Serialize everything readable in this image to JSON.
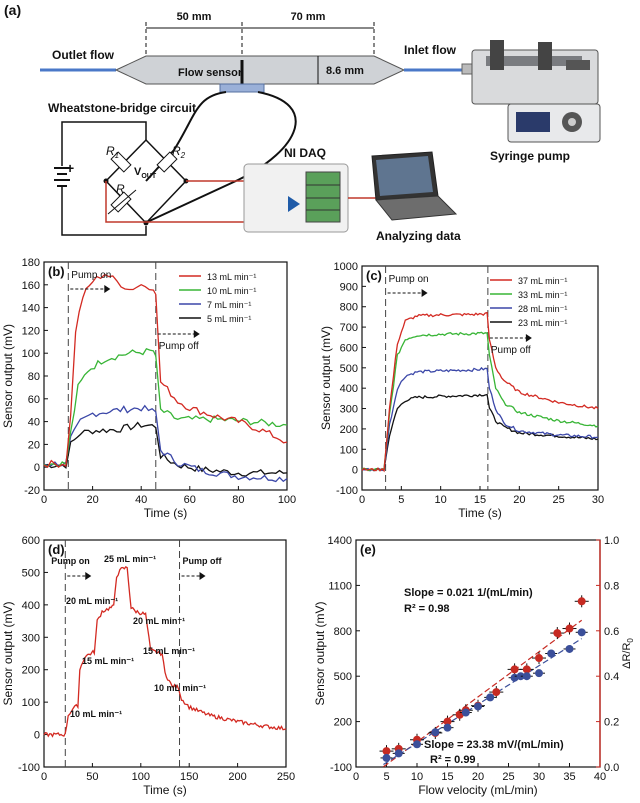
{
  "panel_a": {
    "label": "(a)",
    "dim_left": "50 mm",
    "dim_right": "70 mm",
    "dim_height": "8.6 mm",
    "outlet": "Outlet flow",
    "inlet": "Inlet flow",
    "flow_sensor": "Flow sensor",
    "bridge_title": "Wheatstone-bridge circuit",
    "r1": "R",
    "r1_sub": "1",
    "r2": "R",
    "r2_sub": "2",
    "vout": "V",
    "vout_sub": "OUT",
    "r_var": "R",
    "plus": "+",
    "daq": "NI DAQ",
    "syringe": "Syringe pump",
    "analyzing": "Analyzing data"
  },
  "chart_data": [
    {
      "id": "b",
      "type": "line",
      "panel_label": "(b)",
      "xlabel": "Time (s)",
      "ylabel": "Sensor output (mV)",
      "xlim": [
        0,
        100
      ],
      "ylim": [
        -20,
        180
      ],
      "xticks": [
        0,
        20,
        40,
        60,
        80,
        100
      ],
      "yticks": [
        -20,
        0,
        20,
        40,
        60,
        80,
        100,
        120,
        140,
        160,
        180
      ],
      "markers": [
        10,
        46
      ],
      "annotations": [
        "Pump on",
        "Pump off"
      ],
      "series": [
        {
          "name": "13 mL min⁻¹",
          "color": "#d32a22",
          "points": [
            [
              0,
              3
            ],
            [
              9,
              3
            ],
            [
              11,
              45
            ],
            [
              13,
              120
            ],
            [
              16,
              150
            ],
            [
              20,
              163
            ],
            [
              25,
              170
            ],
            [
              30,
              163
            ],
            [
              35,
              156
            ],
            [
              40,
              160
            ],
            [
              45,
              158
            ],
            [
              46,
              150
            ],
            [
              48,
              75
            ],
            [
              55,
              58
            ],
            [
              60,
              52
            ],
            [
              70,
              45
            ],
            [
              80,
              40
            ],
            [
              90,
              32
            ],
            [
              100,
              22
            ]
          ]
        },
        {
          "name": "10 mL min⁻¹",
          "color": "#38b536",
          "points": [
            [
              0,
              3
            ],
            [
              9,
              3
            ],
            [
              11,
              30
            ],
            [
              14,
              70
            ],
            [
              18,
              85
            ],
            [
              25,
              95
            ],
            [
              35,
              100
            ],
            [
              45,
              102
            ],
            [
              46,
              95
            ],
            [
              48,
              50
            ],
            [
              55,
              42
            ],
            [
              70,
              42
            ],
            [
              85,
              40
            ],
            [
              100,
              37
            ]
          ]
        },
        {
          "name": "7 mL min⁻¹",
          "color": "#3b47a8",
          "points": [
            [
              0,
              3
            ],
            [
              9,
              3
            ],
            [
              11,
              25
            ],
            [
              15,
              40
            ],
            [
              20,
              47
            ],
            [
              30,
              50
            ],
            [
              40,
              52
            ],
            [
              46,
              48
            ],
            [
              48,
              15
            ],
            [
              55,
              4
            ],
            [
              65,
              -3
            ],
            [
              80,
              -8
            ],
            [
              100,
              -10
            ]
          ]
        },
        {
          "name": "5 mL min⁻¹",
          "color": "#111111",
          "points": [
            [
              0,
              2
            ],
            [
              9,
              2
            ],
            [
              11,
              20
            ],
            [
              15,
              30
            ],
            [
              20,
              32
            ],
            [
              30,
              33
            ],
            [
              40,
              37
            ],
            [
              46,
              36
            ],
            [
              48,
              10
            ],
            [
              55,
              2
            ],
            [
              65,
              -2
            ],
            [
              80,
              -5
            ],
            [
              100,
              -5
            ]
          ]
        }
      ],
      "noise": 3
    },
    {
      "id": "c",
      "type": "line",
      "panel_label": "(c)",
      "xlabel": "Time (s)",
      "ylabel": "Sensor output (mV)",
      "xlim": [
        0,
        30
      ],
      "ylim": [
        -100,
        1000
      ],
      "xticks": [
        0,
        5,
        10,
        15,
        20,
        25,
        30
      ],
      "yticks": [
        -100,
        0,
        100,
        200,
        300,
        400,
        500,
        600,
        700,
        800,
        900,
        1000
      ],
      "markers": [
        3,
        16
      ],
      "annotations": [
        "Pump on",
        "Pump off"
      ],
      "series": [
        {
          "name": "37 mL min⁻¹",
          "color": "#d32a22",
          "points": [
            [
              0,
              0
            ],
            [
              2.8,
              0
            ],
            [
              3.5,
              300
            ],
            [
              4.5,
              620
            ],
            [
              5.5,
              730
            ],
            [
              7,
              755
            ],
            [
              10,
              760
            ],
            [
              14,
              762
            ],
            [
              15.9,
              765
            ],
            [
              16.2,
              640
            ],
            [
              17,
              500
            ],
            [
              18,
              440
            ],
            [
              20,
              380
            ],
            [
              25,
              330
            ],
            [
              30,
              300
            ]
          ]
        },
        {
          "name": "33 mL min⁻¹",
          "color": "#38b536",
          "points": [
            [
              0,
              0
            ],
            [
              2.8,
              0
            ],
            [
              3.5,
              270
            ],
            [
              4.5,
              560
            ],
            [
              5.5,
              640
            ],
            [
              7,
              660
            ],
            [
              10,
              665
            ],
            [
              14,
              668
            ],
            [
              15.9,
              670
            ],
            [
              16.2,
              560
            ],
            [
              17,
              400
            ],
            [
              18,
              330
            ],
            [
              20,
              280
            ],
            [
              25,
              240
            ],
            [
              30,
              215
            ]
          ]
        },
        {
          "name": "28 mL min⁻¹",
          "color": "#3b47a8",
          "points": [
            [
              0,
              0
            ],
            [
              2.8,
              0
            ],
            [
              3.5,
              220
            ],
            [
              4.5,
              400
            ],
            [
              5.5,
              460
            ],
            [
              7,
              480
            ],
            [
              10,
              485
            ],
            [
              14,
              490
            ],
            [
              15.9,
              495
            ],
            [
              16.2,
              400
            ],
            [
              17,
              300
            ],
            [
              18,
              230
            ],
            [
              20,
              190
            ],
            [
              25,
              170
            ],
            [
              30,
              160
            ]
          ]
        },
        {
          "name": "23 mL min⁻¹",
          "color": "#111111",
          "points": [
            [
              0,
              0
            ],
            [
              2.8,
              0
            ],
            [
              3.5,
              170
            ],
            [
              4.5,
              300
            ],
            [
              5.5,
              340
            ],
            [
              7,
              355
            ],
            [
              10,
              360
            ],
            [
              14,
              365
            ],
            [
              15.9,
              370
            ],
            [
              16.2,
              300
            ],
            [
              17,
              240
            ],
            [
              18,
              210
            ],
            [
              20,
              180
            ],
            [
              25,
              165
            ],
            [
              30,
              150
            ]
          ]
        }
      ],
      "noise": 7
    },
    {
      "id": "d",
      "type": "line",
      "panel_label": "(d)",
      "xlabel": "Time (s)",
      "ylabel": "Sensor output (mV)",
      "xlim": [
        0,
        250
      ],
      "ylim": [
        -100,
        600
      ],
      "xticks": [
        0,
        50,
        100,
        150,
        200,
        250
      ],
      "yticks": [
        -100,
        0,
        100,
        200,
        300,
        400,
        500,
        600
      ],
      "markers": [
        22,
        140
      ],
      "annotations": [
        "Pump on",
        "Pump off",
        "25 mL min⁻¹",
        "20 mL min⁻¹",
        "20 mL min⁻¹",
        "15 mL min⁻¹",
        "15 mL min⁻¹",
        "10 mL min⁻¹",
        "10 mL min⁻¹"
      ],
      "series": [
        {
          "name": "",
          "color": "#d32a22",
          "points": [
            [
              0,
              0
            ],
            [
              22,
              0
            ],
            [
              25,
              60
            ],
            [
              30,
              80
            ],
            [
              35,
              90
            ],
            [
              37,
              200
            ],
            [
              42,
              240
            ],
            [
              48,
              250
            ],
            [
              52,
              255
            ],
            [
              55,
              350
            ],
            [
              60,
              380
            ],
            [
              68,
              390
            ],
            [
              72,
              395
            ],
            [
              75,
              490
            ],
            [
              80,
              510
            ],
            [
              86,
              515
            ],
            [
              90,
              390
            ],
            [
              95,
              380
            ],
            [
              105,
              370
            ],
            [
              110,
              260
            ],
            [
              115,
              255
            ],
            [
              122,
              250
            ],
            [
              125,
              190
            ],
            [
              132,
              150
            ],
            [
              139,
              145
            ],
            [
              142,
              110
            ],
            [
              150,
              85
            ],
            [
              170,
              60
            ],
            [
              200,
              40
            ],
            [
              230,
              25
            ],
            [
              250,
              18
            ]
          ]
        }
      ],
      "noise": 6
    },
    {
      "id": "e",
      "type": "scatter",
      "panel_label": "(e)",
      "xlabel": "Flow velocity (mL/min)",
      "ylabel": "Sensor output (mV)",
      "y2label": "ΔR/R",
      "y2label_sub": "0",
      "xlim": [
        0,
        40
      ],
      "ylim": [
        -100,
        1400
      ],
      "y2lim": [
        0,
        1.0
      ],
      "xticks": [
        0,
        5,
        10,
        15,
        20,
        25,
        30,
        35,
        40
      ],
      "yticks": [
        -100,
        200,
        500,
        800,
        1100,
        1400
      ],
      "y2ticks": [
        0,
        0.2,
        0.4,
        0.6,
        0.8,
        1.0
      ],
      "series": [
        {
          "name": "ΔR/R0",
          "color": "#c62a22",
          "axis": "right",
          "x": [
            5,
            7,
            10,
            13,
            15,
            17,
            18,
            20,
            23,
            26,
            28,
            30,
            33,
            35,
            37
          ],
          "y": [
            0.07,
            0.08,
            0.12,
            0.15,
            0.2,
            0.23,
            0.25,
            0.27,
            0.33,
            0.43,
            0.43,
            0.48,
            0.59,
            0.61,
            0.73
          ]
        },
        {
          "name": "Sensor output",
          "color": "#3b4f9a",
          "axis": "left",
          "x": [
            5,
            7,
            10,
            13,
            15,
            18,
            20,
            22,
            26,
            27,
            28,
            30,
            32,
            35,
            37
          ],
          "y": [
            -40,
            -10,
            50,
            130,
            160,
            260,
            300,
            360,
            490,
            500,
            500,
            520,
            650,
            680,
            790
          ]
        }
      ],
      "fits": [
        {
          "text": "Slope = 0.021  1/(mL/min)",
          "r2": "R² = 0.98",
          "color": "#c62a22"
        },
        {
          "text": "Slope = 23.38 mV/(mL/min)",
          "r2": "R² = 0.99",
          "color": "#3b4f9a"
        }
      ]
    }
  ]
}
